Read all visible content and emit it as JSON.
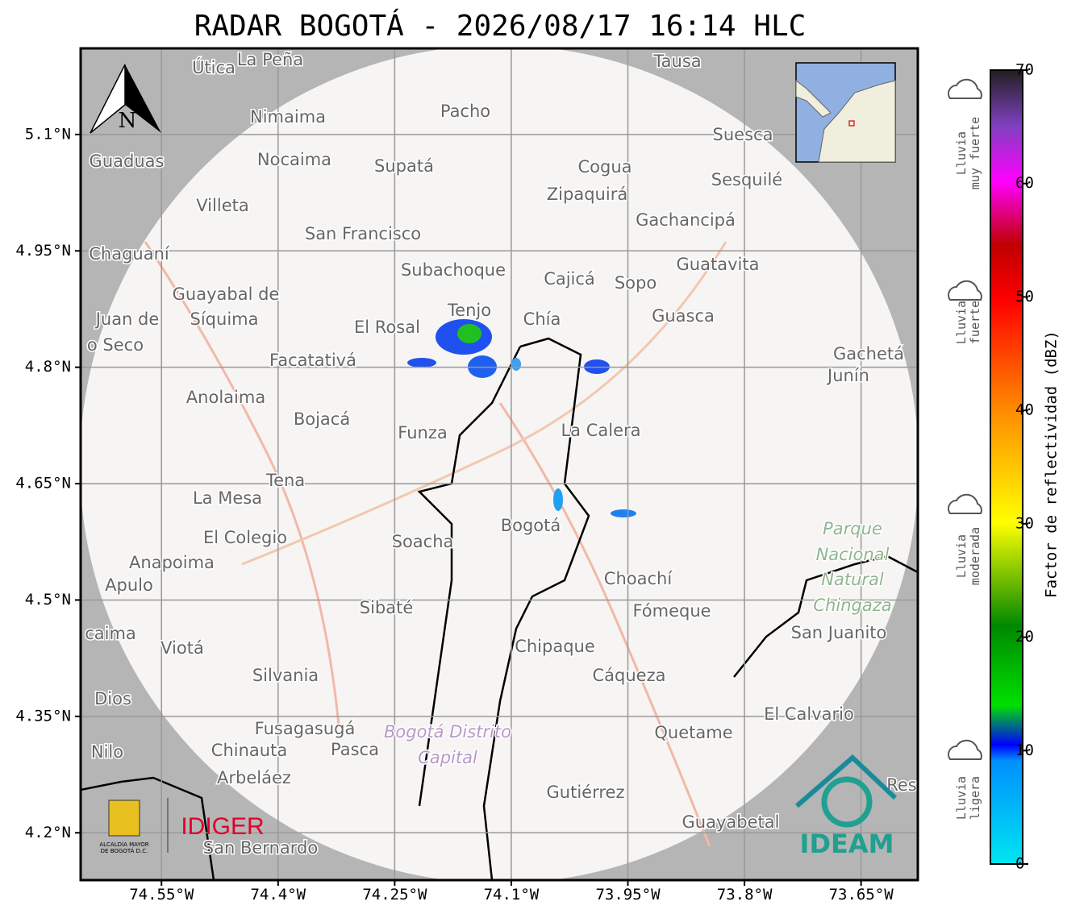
{
  "header": {
    "title": "RADAR BOGOTÁ - 2026/08/17 16:14 HLC"
  },
  "map": {
    "xlim": [
      -74.654,
      -73.577
    ],
    "ylim": [
      4.139,
      5.211
    ],
    "xticks": [
      {
        "value": -74.55,
        "label": "74.55°W"
      },
      {
        "value": -74.4,
        "label": "74.4°W"
      },
      {
        "value": -74.25,
        "label": "74.25°W"
      },
      {
        "value": -74.1,
        "label": "74.1°W"
      },
      {
        "value": -73.95,
        "label": "73.95°W"
      },
      {
        "value": -73.8,
        "label": "73.8°W"
      },
      {
        "value": -73.65,
        "label": "73.65°W"
      }
    ],
    "yticks": [
      {
        "value": 5.1,
        "label": "5.1°N"
      },
      {
        "value": 4.95,
        "label": "4.95°N"
      },
      {
        "value": 4.8,
        "label": "4.8°N"
      },
      {
        "value": 4.65,
        "label": "4.65°N"
      },
      {
        "value": 4.5,
        "label": "4.5°N"
      },
      {
        "value": 4.35,
        "label": "4.35°N"
      },
      {
        "value": 4.2,
        "label": "4.2°N"
      }
    ],
    "north_label": "N",
    "places": [
      "Útica",
      "La Peña",
      "Tausa",
      "Pacho",
      "Nimaima",
      "Guaduas",
      "Nocaima",
      "Supatá",
      "Cogua",
      "Suesca",
      "Sesquilé",
      "Zipaquirá",
      "Villeta",
      "Gachancipá",
      "San Francisco",
      "Chaguaní",
      "Guatavita",
      "Subachoque",
      "Cajicá",
      "Sopo",
      "Guayabal de",
      "Síquima",
      "Tenjo",
      "Chía",
      "Juan de",
      "o Seco",
      "El Rosal",
      "Guasca",
      "Facatativá",
      "Gachetá",
      "Junín",
      "Anolaima",
      "Bojacá",
      "Funza",
      "La Calera",
      "Tena",
      "La Mesa",
      "El Colegio",
      "Soacha",
      "Bogotá",
      "Anapoima",
      "Apulo",
      "Choachí",
      "Sibaté",
      "Fómeque",
      "San Juanito",
      "caima",
      "Viotá",
      "Chipaque",
      "Silvania",
      "Cáqueza",
      "Dios",
      "El Calvario",
      "Fusagasugá",
      "Quetame",
      "Nilo",
      "Chinauta",
      "Pasca",
      "Arbeláez",
      "Gutiérrez",
      "Res",
      "Guayabetal",
      "San Bernardo"
    ],
    "park_label": [
      "Parque",
      "Nacional",
      "Natural",
      "Chingaza"
    ],
    "district_label": [
      "Bogotá Distrito",
      "Capital"
    ],
    "logos": {
      "idiger": "IDIGER",
      "ideam": "IDEAM",
      "alcaldia": [
        "ALCALDÍA MAYOR",
        "DE BOGOTÁ D.C."
      ]
    }
  },
  "colorbar": {
    "label": "Factor de reflectividad (dBZ)",
    "ylim": [
      0,
      70
    ],
    "yticks": [
      0,
      10,
      20,
      30,
      40,
      50,
      60,
      70
    ]
  },
  "rain_levels": [
    [
      "Lluvia",
      "muy fuerte"
    ],
    [
      "Lluvia",
      "fuerte"
    ],
    [
      "Lluvia",
      "moderada"
    ],
    [
      "Lluvia",
      "ligera"
    ]
  ]
}
